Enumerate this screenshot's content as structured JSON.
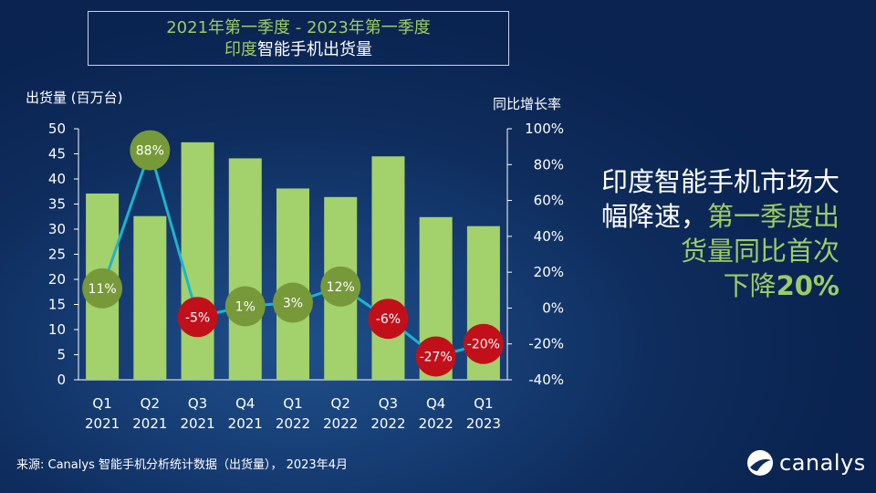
{
  "title": {
    "line1": "2021年第一季度 - 2023年第一季度",
    "line2_highlight": "印度",
    "line2_rest": "智能手机出货量"
  },
  "headline": {
    "part1": "印度智能手机市场大幅降速，",
    "part2": "第一季度出货量同比首次",
    "part3_prefix": "下降",
    "part3_bold": "20%"
  },
  "source": "来源: Canalys 智能手机分析统计数据（出货量）， 2023年4月",
  "logo": {
    "text": "canalys",
    "icon": "canalys-logo-icon"
  },
  "colors": {
    "bar": "#a3d16b",
    "line": "#1cb4cf",
    "positive_marker": "#77993a",
    "negative_marker": "#c2101a",
    "title_green": "#9ccc65"
  },
  "chart_data": {
    "type": "bar",
    "categories": [
      [
        "Q1",
        "2021"
      ],
      [
        "Q2",
        "2021"
      ],
      [
        "Q3",
        "2021"
      ],
      [
        "Q4",
        "2021"
      ],
      [
        "Q1",
        "2022"
      ],
      [
        "Q2",
        "2022"
      ],
      [
        "Q3",
        "2022"
      ],
      [
        "Q4",
        "2022"
      ],
      [
        "Q1",
        "2023"
      ]
    ],
    "series": [
      {
        "name": "出货量",
        "type": "bar",
        "axis": "left",
        "values": [
          37.1,
          32.6,
          47.3,
          44.1,
          38.1,
          36.4,
          44.5,
          32.4,
          30.6
        ]
      },
      {
        "name": "同比增长率",
        "type": "line",
        "axis": "right",
        "values": [
          11,
          88,
          -5,
          1,
          3,
          12,
          -6,
          -27,
          -20
        ],
        "labels": [
          "11%",
          "88%",
          "-5%",
          "1%",
          "3%",
          "12%",
          "-6%",
          "-27%",
          "-20%"
        ]
      }
    ],
    "ylabel_left": "出货量 (百万台)",
    "ylabel_right": "同比增长率",
    "ylim_left": [
      0,
      50
    ],
    "ylim_right": [
      -40,
      100
    ],
    "yticks_left": [
      "0",
      "5",
      "10",
      "15",
      "20",
      "25",
      "30",
      "35",
      "40",
      "45",
      "50"
    ],
    "yticks_right": [
      "-40%",
      "-20%",
      "0%",
      "20%",
      "40%",
      "60%",
      "80%",
      "100%"
    ],
    "ytick_values_left": [
      0,
      5,
      10,
      15,
      20,
      25,
      30,
      35,
      40,
      45,
      50
    ],
    "ytick_values_right": [
      -40,
      -20,
      0,
      20,
      40,
      60,
      80,
      100
    ]
  }
}
